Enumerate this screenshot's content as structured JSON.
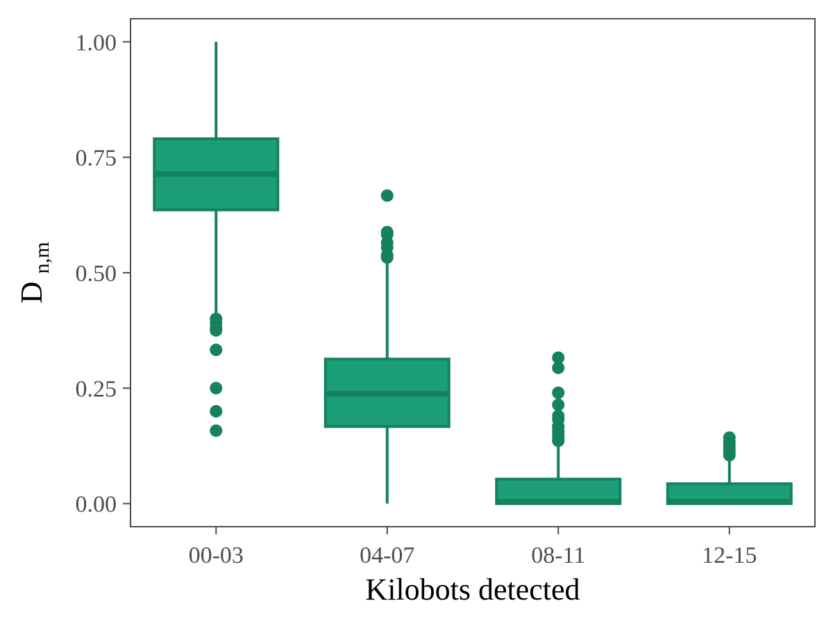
{
  "chart_data": {
    "type": "box",
    "xlabel": "Kilobots detected",
    "ylabel": "D",
    "ylabel_subscript": "n,m",
    "ylim": [
      -0.05,
      1.05
    ],
    "yticks": [
      0.0,
      0.25,
      0.5,
      0.75,
      1.0
    ],
    "ytick_labels": [
      "0.00",
      "0.25",
      "0.50",
      "0.75",
      "1.00"
    ],
    "grid": false,
    "legend": "none",
    "colors": {
      "fill": "#1b9e77",
      "stroke": "#15815f",
      "outlier": "#15815f",
      "frame": "#4d4d4d",
      "tick_text": "#4d4d4d"
    },
    "categories": [
      "00-03",
      "04-07",
      "08-11",
      "12-15"
    ],
    "boxes": [
      {
        "category": "00-03",
        "whisker_low": 0.4,
        "q1": 0.636,
        "median": 0.714,
        "q3": 0.79,
        "whisker_high": 1.0,
        "outliers": [
          0.4,
          0.39,
          0.38,
          0.375,
          0.333,
          0.25,
          0.2,
          0.158
        ]
      },
      {
        "category": "04-07",
        "whisker_low": 0.0,
        "q1": 0.167,
        "median": 0.238,
        "q3": 0.313,
        "whisker_high": 0.53,
        "outliers": [
          0.667,
          0.588,
          0.583,
          0.565,
          0.555,
          0.538,
          0.533
        ]
      },
      {
        "category": "08-11",
        "whisker_low": 0.0,
        "q1": 0.0,
        "median": 0.004,
        "q3": 0.053,
        "whisker_high": 0.13,
        "outliers": [
          0.316,
          0.294,
          0.24,
          0.214,
          0.19,
          0.182,
          0.167,
          0.158,
          0.15,
          0.143,
          0.136
        ]
      },
      {
        "category": "12-15",
        "whisker_low": 0.0,
        "q1": 0.0,
        "median": 0.004,
        "q3": 0.043,
        "whisker_high": 0.1,
        "outliers": [
          0.143,
          0.133,
          0.125,
          0.118,
          0.111,
          0.105
        ]
      }
    ]
  }
}
